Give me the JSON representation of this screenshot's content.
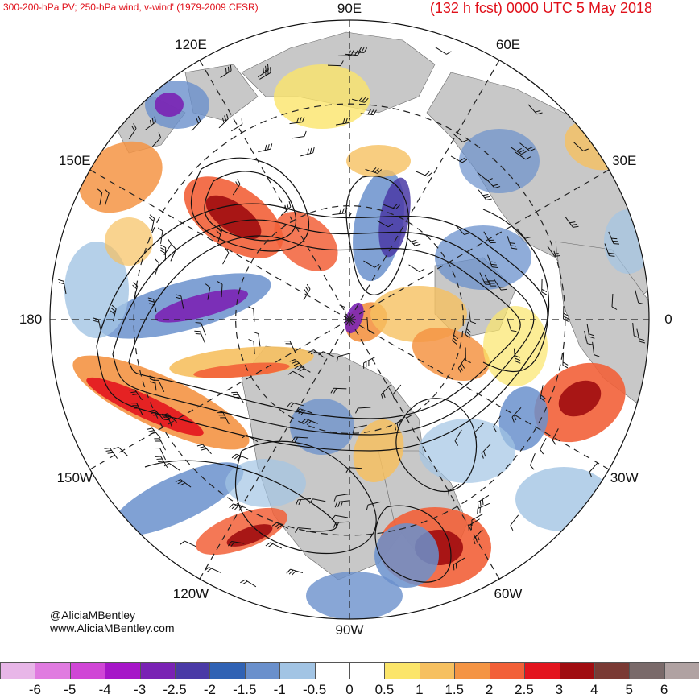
{
  "header": {
    "left_title": "300-200-hPa PV; 250-hPa wind, v-wind' (1979-2009 CFSR)",
    "right_title": "(132 h fcst) 0000 UTC 5 May 2018"
  },
  "map": {
    "projection": "north-polar-stereographic",
    "longitude_labels": [
      {
        "text": "90E",
        "lon": 90
      },
      {
        "text": "60E",
        "lon": 60
      },
      {
        "text": "30E",
        "lon": 30
      },
      {
        "text": "0",
        "lon": 0
      },
      {
        "text": "30W",
        "lon": -30
      },
      {
        "text": "60W",
        "lon": -60
      },
      {
        "text": "90W",
        "lon": -90
      },
      {
        "text": "120W",
        "lon": -120
      },
      {
        "text": "150W",
        "lon": -150
      },
      {
        "text": "180",
        "lon": 180
      },
      {
        "text": "150E",
        "lon": 150
      },
      {
        "text": "120E",
        "lon": 120
      }
    ],
    "colors": {
      "land": "#c8c8c8",
      "ocean": "#ffffff",
      "contour": "#111111",
      "grid": "#222222"
    }
  },
  "credits": {
    "handle": "@AliciaMBentley",
    "website": "www.AliciaMBentley.com"
  },
  "colorbar": {
    "colors": [
      "#e8b6e8",
      "#e07be0",
      "#d046d6",
      "#a616c8",
      "#7a22b4",
      "#4a3aa6",
      "#3062b4",
      "#6a90cc",
      "#a2c4e4",
      "#ffffff",
      "#ffffff",
      "#fbe56a",
      "#f6c060",
      "#f49444",
      "#f26038",
      "#e3141e",
      "#a00c10",
      "#7a3a34",
      "#7a6a6a",
      "#b0a2a2"
    ],
    "labels": [
      "-6",
      "-5",
      "-4",
      "-3",
      "-2.5",
      "-2",
      "-1.5",
      "-1",
      "-0.5",
      "0",
      "0.5",
      "1",
      "1.5",
      "2",
      "2.5",
      "3",
      "4",
      "5",
      "6"
    ]
  }
}
